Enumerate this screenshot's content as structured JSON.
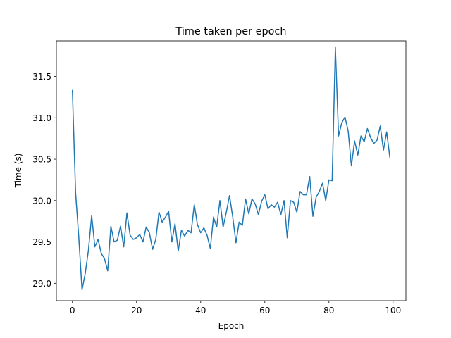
{
  "chart_data": {
    "type": "line",
    "title": "Time taken per epoch",
    "xlabel": "Epoch",
    "ylabel": "Time (s)",
    "xlim": [
      -5,
      104
    ],
    "ylim": [
      28.79,
      31.93
    ],
    "xticks": [
      0,
      20,
      40,
      60,
      80,
      100
    ],
    "yticks": [
      29.0,
      29.5,
      30.0,
      30.5,
      31.0,
      31.5
    ],
    "ytick_labels": [
      "29.0",
      "29.5",
      "30.0",
      "30.5",
      "31.0",
      "31.5"
    ],
    "grid": false,
    "series": [
      {
        "color": "#1f77b4",
        "x": [
          0,
          1,
          2,
          3,
          4,
          5,
          6,
          7,
          8,
          9,
          10,
          11,
          12,
          13,
          14,
          15,
          16,
          17,
          18,
          19,
          20,
          21,
          22,
          23,
          24,
          25,
          26,
          27,
          28,
          29,
          30,
          31,
          32,
          33,
          34,
          35,
          36,
          37,
          38,
          39,
          40,
          41,
          42,
          43,
          44,
          45,
          46,
          47,
          48,
          49,
          50,
          51,
          52,
          53,
          54,
          55,
          56,
          57,
          58,
          59,
          60,
          61,
          62,
          63,
          64,
          65,
          66,
          67,
          68,
          69,
          70,
          71,
          72,
          73,
          74,
          75,
          76,
          77,
          78,
          79,
          80,
          81,
          82,
          83,
          84,
          85,
          86,
          87,
          88,
          89,
          90,
          91,
          92,
          93,
          94,
          95,
          96,
          97,
          98,
          99
        ],
        "values": [
          31.33,
          30.09,
          29.55,
          28.92,
          29.12,
          29.4,
          29.82,
          29.44,
          29.53,
          29.36,
          29.3,
          29.15,
          29.69,
          29.5,
          29.52,
          29.69,
          29.44,
          29.85,
          29.58,
          29.53,
          29.55,
          29.59,
          29.5,
          29.68,
          29.61,
          29.41,
          29.53,
          29.86,
          29.74,
          29.8,
          29.87,
          29.5,
          29.72,
          29.39,
          29.64,
          29.57,
          29.64,
          29.61,
          29.95,
          29.71,
          29.61,
          29.67,
          29.58,
          29.42,
          29.8,
          29.68,
          30.0,
          29.68,
          29.86,
          30.06,
          29.8,
          29.49,
          29.74,
          29.7,
          30.02,
          29.84,
          30.02,
          29.96,
          29.83,
          29.99,
          30.07,
          29.9,
          29.95,
          29.92,
          29.98,
          29.83,
          30.0,
          29.55,
          30.0,
          29.98,
          29.86,
          30.11,
          30.07,
          30.07,
          30.29,
          29.81,
          30.04,
          30.11,
          30.21,
          30.0,
          30.25,
          30.24,
          31.85,
          30.78,
          30.94,
          31.01,
          30.84,
          30.42,
          30.72,
          30.55,
          30.78,
          30.71,
          30.87,
          30.76,
          30.69,
          30.73,
          30.9,
          30.61,
          30.83,
          30.52
        ]
      }
    ]
  }
}
